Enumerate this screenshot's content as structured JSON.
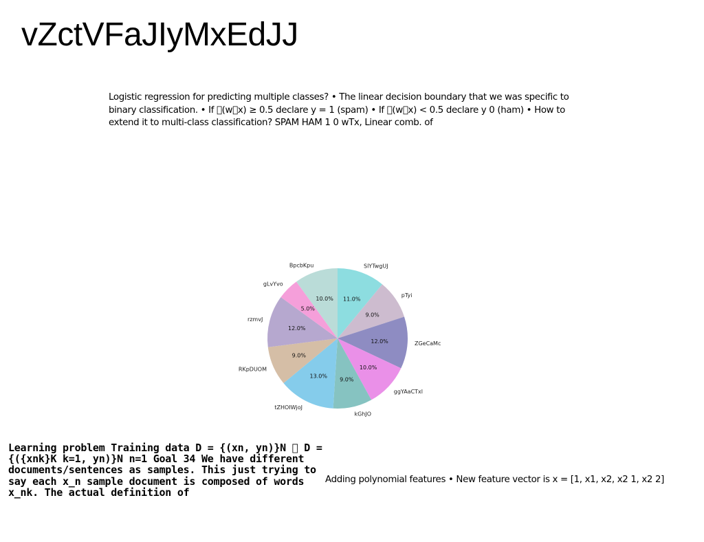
{
  "page": {
    "title": "vZctVFaJIyMxEdJJ",
    "top_paragraph": "Logistic regression for predicting multiple classes? • The linear decision boundary that we was specific to binary classification. • If \u0000(w\u0000x) ≥ 0.5 declare y = 1 (spam) • If \u0000(w\u0000x) < 0.5 declare y 0 (ham) • How to extend it to multi-class classification? SPAM HAM 1 0 wTx, Linear comb. of",
    "bottom_left_paragraph": "Learning problem Training data D = {(xn, yn)}N \u0000 D = {({xnk}K k=1, yn)}N n=1 Goal 34 We have different documents/sentences as samples. This just trying to say each x_n sample document is composed of words x_nk. The actual definition of",
    "bottom_right_paragraph": "Adding polynomial features • New feature vector is x = [1, x1, x2, x2 1, x2 2]"
  },
  "chart_data": {
    "type": "pie",
    "start_angle_deg": 90,
    "direction": "clockwise",
    "categories": [
      "SlYTwgUJ",
      "pTyi",
      "ZGeCaMc",
      "ggYAaCTxl",
      "kGhJO",
      "tZHOIWjoJ",
      "RKpDUOM",
      "rzmvJ",
      "gLvYvo",
      "BpcbKpu"
    ],
    "values": [
      11.0,
      9.0,
      12.0,
      10.0,
      9.0,
      13.0,
      9.0,
      12.0,
      5.0,
      10.0
    ],
    "percent_labels": [
      "11.0%",
      "9.0%",
      "12.0%",
      "10.0%",
      "9.0%",
      "13.0%",
      "9.0%",
      "12.0%",
      "5.0%",
      "10.0%"
    ],
    "colors": [
      "#8ddde0",
      "#cdbccf",
      "#8e8cc2",
      "#ea90e8",
      "#86c3c1",
      "#85cceb",
      "#d5bea6",
      "#b6a8cf",
      "#f59fda",
      "#badcd8"
    ]
  }
}
